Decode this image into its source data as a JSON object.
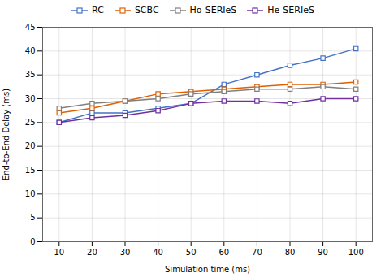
{
  "chart_data": {
    "type": "line",
    "x": [
      10,
      20,
      30,
      40,
      50,
      60,
      70,
      80,
      90,
      100
    ],
    "series": [
      {
        "name": "RC",
        "color": "#4472C4",
        "values": [
          25,
          27,
          27,
          28,
          29,
          33,
          35,
          37,
          38.5,
          40.5
        ]
      },
      {
        "name": "SCBC",
        "color": "#E06000",
        "values": [
          27,
          28,
          29.5,
          31,
          31.5,
          32,
          32.5,
          33,
          33,
          33.5
        ]
      },
      {
        "name": "Ho-SERIeS",
        "color": "#808080",
        "values": [
          28,
          29,
          29.5,
          30,
          31,
          31.5,
          32,
          32,
          32.5,
          32
        ]
      },
      {
        "name": "He-SERIeS",
        "color": "#7030A0",
        "values": [
          25,
          26,
          26.5,
          27.5,
          29,
          29.5,
          29.5,
          29,
          30,
          30
        ]
      }
    ],
    "xlabel": "Simulation time (ms)",
    "ylabel": "End-to-End Delay (ms)",
    "xlim": [
      5,
      105
    ],
    "ylim": [
      0,
      45
    ],
    "xticks": [
      10,
      20,
      30,
      40,
      50,
      60,
      70,
      80,
      90,
      100
    ],
    "yticks": [
      0,
      5,
      10,
      15,
      20,
      25,
      30,
      35,
      40,
      45
    ],
    "grid": true,
    "marker": "square",
    "legend": "top"
  }
}
